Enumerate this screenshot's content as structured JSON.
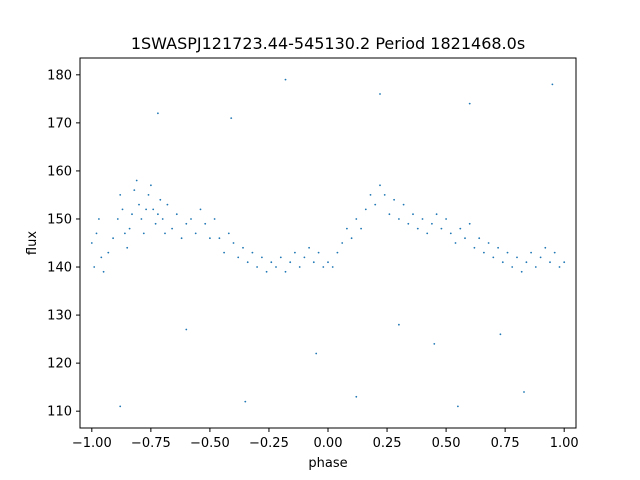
{
  "chart_data": {
    "type": "scatter",
    "title": "1SWASPJ121723.44-545130.2 Period 1821468.0s",
    "xlabel": "phase",
    "ylabel": "flux",
    "xlim": [
      -1.05,
      1.05
    ],
    "ylim": [
      106.5,
      183.5
    ],
    "xticks": [
      -1.0,
      -0.75,
      -0.5,
      -0.25,
      0.0,
      0.25,
      0.5,
      0.75,
      1.0
    ],
    "xtick_labels": [
      "−1.00",
      "−0.75",
      "−0.50",
      "−0.25",
      "0.00",
      "0.25",
      "0.50",
      "0.75",
      "1.00"
    ],
    "yticks": [
      110,
      120,
      130,
      140,
      150,
      160,
      170,
      180
    ],
    "ytick_labels": [
      "110",
      "120",
      "130",
      "140",
      "150",
      "160",
      "170",
      "180"
    ],
    "grid": false,
    "legend": "none",
    "marker_color": "#1f77b4",
    "series": [
      {
        "points": [
          [
            -1.0,
            145
          ],
          [
            -0.99,
            140
          ],
          [
            -0.98,
            147
          ],
          [
            -0.97,
            150
          ],
          [
            -0.96,
            142
          ],
          [
            -0.95,
            139
          ],
          [
            -0.93,
            143
          ],
          [
            -0.91,
            146
          ],
          [
            -0.89,
            150
          ],
          [
            -0.88,
            155
          ],
          [
            -0.87,
            152
          ],
          [
            -0.86,
            147
          ],
          [
            -0.85,
            144
          ],
          [
            -0.84,
            148
          ],
          [
            -0.83,
            151
          ],
          [
            -0.82,
            156
          ],
          [
            -0.81,
            158
          ],
          [
            -0.8,
            153
          ],
          [
            -0.79,
            150
          ],
          [
            -0.78,
            147
          ],
          [
            -0.77,
            152
          ],
          [
            -0.76,
            155
          ],
          [
            -0.75,
            157
          ],
          [
            -0.74,
            152
          ],
          [
            -0.73,
            149
          ],
          [
            -0.72,
            151
          ],
          [
            -0.71,
            154
          ],
          [
            -0.7,
            150
          ],
          [
            -0.69,
            147
          ],
          [
            -0.68,
            153
          ],
          [
            -0.66,
            148
          ],
          [
            -0.64,
            151
          ],
          [
            -0.62,
            146
          ],
          [
            -0.6,
            149
          ],
          [
            -0.58,
            150
          ],
          [
            -0.56,
            147
          ],
          [
            -0.54,
            152
          ],
          [
            -0.52,
            149
          ],
          [
            -0.5,
            146
          ],
          [
            -0.48,
            150
          ],
          [
            -0.46,
            146
          ],
          [
            -0.44,
            143
          ],
          [
            -0.42,
            147
          ],
          [
            -0.4,
            145
          ],
          [
            -0.38,
            142
          ],
          [
            -0.36,
            144
          ],
          [
            -0.34,
            141
          ],
          [
            -0.32,
            143
          ],
          [
            -0.3,
            140
          ],
          [
            -0.28,
            142
          ],
          [
            -0.26,
            139
          ],
          [
            -0.24,
            141
          ],
          [
            -0.22,
            140
          ],
          [
            -0.2,
            142
          ],
          [
            -0.18,
            139
          ],
          [
            -0.16,
            141
          ],
          [
            -0.14,
            143
          ],
          [
            -0.12,
            140
          ],
          [
            -0.1,
            142
          ],
          [
            -0.08,
            144
          ],
          [
            -0.06,
            141
          ],
          [
            -0.04,
            143
          ],
          [
            -0.02,
            140
          ],
          [
            0.0,
            141
          ],
          [
            0.02,
            140
          ],
          [
            0.04,
            143
          ],
          [
            0.06,
            145
          ],
          [
            0.08,
            148
          ],
          [
            0.1,
            146
          ],
          [
            0.12,
            150
          ],
          [
            0.14,
            148
          ],
          [
            0.16,
            152
          ],
          [
            0.18,
            155
          ],
          [
            0.2,
            153
          ],
          [
            0.22,
            157
          ],
          [
            0.24,
            155
          ],
          [
            0.26,
            151
          ],
          [
            0.28,
            154
          ],
          [
            0.3,
            150
          ],
          [
            0.32,
            153
          ],
          [
            0.34,
            149
          ],
          [
            0.36,
            151
          ],
          [
            0.38,
            148
          ],
          [
            0.4,
            150
          ],
          [
            0.42,
            147
          ],
          [
            0.44,
            149
          ],
          [
            0.46,
            151
          ],
          [
            0.48,
            148
          ],
          [
            0.5,
            150
          ],
          [
            0.52,
            147
          ],
          [
            0.54,
            145
          ],
          [
            0.56,
            148
          ],
          [
            0.58,
            146
          ],
          [
            0.6,
            149
          ],
          [
            0.62,
            144
          ],
          [
            0.64,
            146
          ],
          [
            0.66,
            143
          ],
          [
            0.68,
            145
          ],
          [
            0.7,
            142
          ],
          [
            0.72,
            144
          ],
          [
            0.74,
            141
          ],
          [
            0.76,
            143
          ],
          [
            0.78,
            140
          ],
          [
            0.8,
            142
          ],
          [
            0.82,
            139
          ],
          [
            0.84,
            141
          ],
          [
            0.86,
            143
          ],
          [
            0.88,
            140
          ],
          [
            0.9,
            142
          ],
          [
            0.92,
            144
          ],
          [
            0.94,
            141
          ],
          [
            0.96,
            143
          ],
          [
            0.98,
            140
          ],
          [
            1.0,
            141
          ],
          [
            -0.41,
            171
          ],
          [
            0.6,
            174
          ],
          [
            -0.72,
            172
          ],
          [
            0.22,
            176
          ],
          [
            -0.18,
            179
          ],
          [
            0.95,
            178
          ],
          [
            -0.88,
            111
          ],
          [
            -0.35,
            112
          ],
          [
            0.12,
            113
          ],
          [
            0.55,
            111
          ],
          [
            0.83,
            114
          ],
          [
            -0.6,
            127
          ],
          [
            0.45,
            124
          ],
          [
            -0.05,
            122
          ],
          [
            0.3,
            128
          ],
          [
            0.73,
            126
          ]
        ]
      }
    ]
  }
}
